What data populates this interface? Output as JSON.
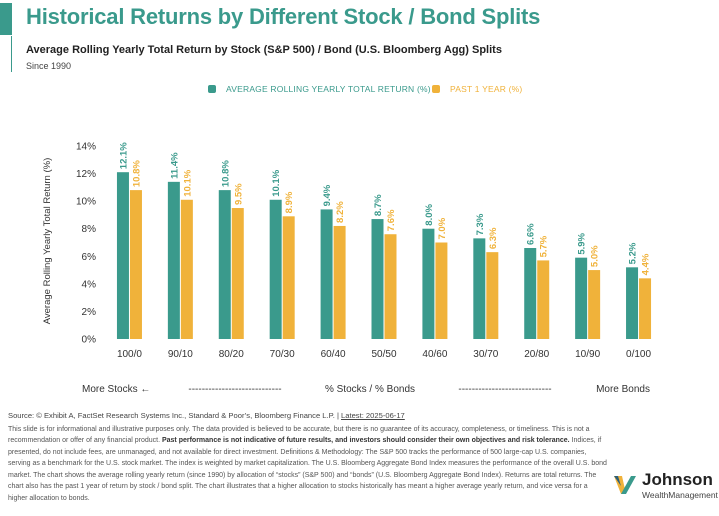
{
  "title": "Historical Returns by Different Stock / Bond Splits",
  "subtitle": "Average Rolling Yearly Total Return by Stock (S&P 500) / Bond (U.S. Bloomberg Agg) Splits",
  "since": "Since 1990",
  "colors": {
    "accent": "#3a9a8c",
    "orange": "#f0b23a"
  },
  "chart_data": {
    "type": "bar",
    "categories": [
      "100/0",
      "90/10",
      "80/20",
      "70/30",
      "60/40",
      "50/50",
      "40/60",
      "30/70",
      "20/80",
      "10/90",
      "0/100"
    ],
    "series": [
      {
        "name": "AVERAGE ROLLING YEARLY TOTAL RETURN (%)",
        "color": "#3a9a8c",
        "values": [
          12.1,
          11.4,
          10.8,
          10.1,
          9.4,
          8.7,
          8.0,
          7.3,
          6.6,
          5.9,
          5.2
        ],
        "labels": [
          "12.1%",
          "11.4%",
          "10.8%",
          "10.1%",
          "9.4%",
          "8.7%",
          "8.0%",
          "7.3%",
          "6.6%",
          "5.9%",
          "5.2%"
        ]
      },
      {
        "name": "PAST 1 YEAR (%)",
        "color": "#f0b23a",
        "values": [
          10.8,
          10.1,
          9.5,
          8.9,
          8.2,
          7.6,
          7.0,
          6.3,
          5.7,
          5.0,
          4.4
        ],
        "labels": [
          "10.8%",
          "10.1%",
          "9.5%",
          "8.9%",
          "8.2%",
          "7.6%",
          "7.0%",
          "6.3%",
          "5.7%",
          "5.0%",
          "4.4%"
        ]
      }
    ],
    "yticks": [
      "0%",
      "2%",
      "4%",
      "6%",
      "8%",
      "10%",
      "12%",
      "14%"
    ],
    "ylim": [
      0,
      14
    ],
    "ylabel": "Average Rolling Yearly Total Return (%)",
    "xlabel": "% Stocks / % Bonds",
    "x_left_note": "More Stocks ←",
    "x_right_note": "More Bonds",
    "x_dashes": "----------------------------",
    "grid": false,
    "legend": "top-center"
  },
  "footer": {
    "source": "Source: © Exhibit A, FactSet Research Systems Inc., Standard & Poor’s, Bloomberg Finance L.P.",
    "latest": "Latest: 2025-06-17",
    "disclaimer_1": "This slide is for informational and illustrative purposes only. The data provided is believed to be accurate, but there is no guarantee of its accuracy, completeness, or timeliness. This is not a recommendation or offer of any financial product.",
    "disclaimer_bold": "Past performance is not indicative of future results, and investors should consider their own objectives and risk tolerance.",
    "disclaimer_2": "Indices, if presented, do not include fees, are unmanaged, and not available for direct investment. Definitions & Methodology: The S&P 500 tracks the performance of 500 large-cap U.S. companies, serving as a benchmark for the U.S. stock market. The index is weighted by market capitalization. The U.S. Bloomberg Aggregate Bond Index measures the performance of the overall U.S. bond market. The chart shows the average rolling yearly return (since 1990) by allocation of “stocks” (S&P 500) and “bonds” (U.S. Bloomberg Aggregate Bond Index). Returns are total returns. The chart also has the past 1 year of return by stock / bond split. The chart illustrates that a higher allocation to stocks historically has meant a higher average yearly return, and vice versa for a higher allocation to bonds."
  },
  "logo": {
    "name": "Johnson",
    "sub": "WealthManagement",
    "icon": "johnson-logo-mark"
  }
}
